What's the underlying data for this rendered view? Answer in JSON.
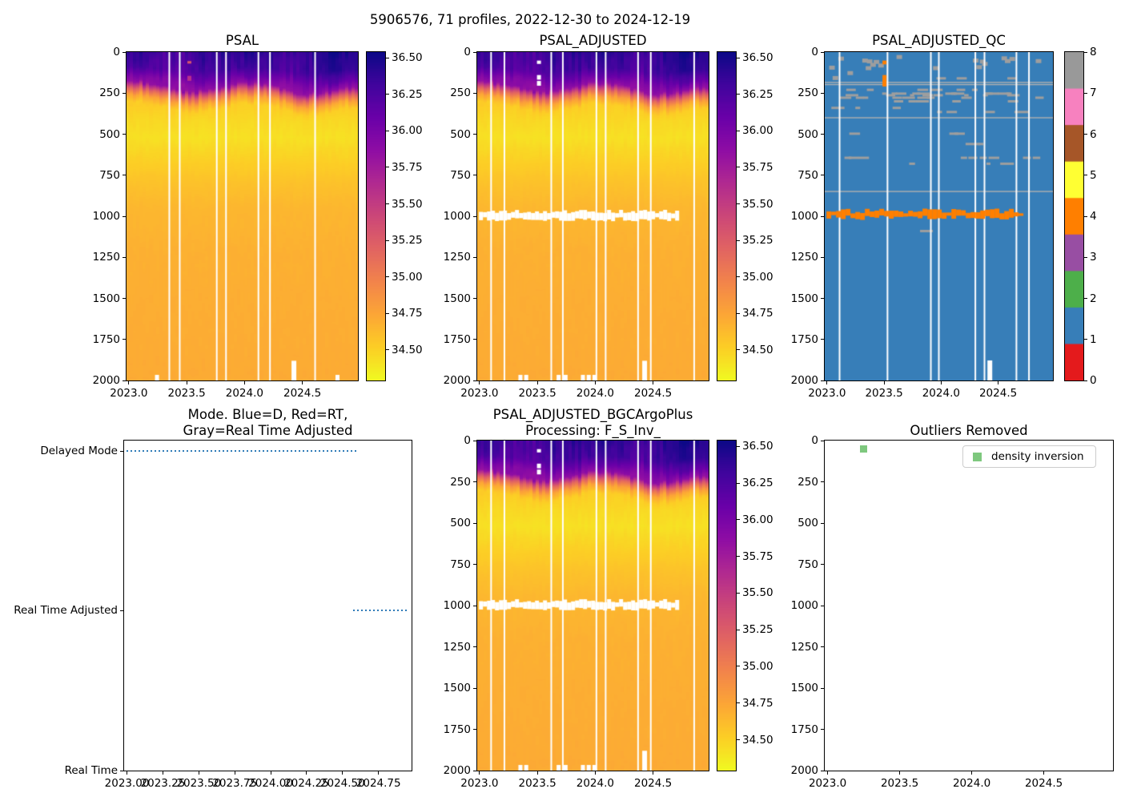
{
  "figure": {
    "title": "5906576, 71 profiles, 2022-12-30 to 2024-12-19"
  },
  "colors": {
    "background": "#ffffff",
    "text": "#000000",
    "mode_dots": "#2e7bb8",
    "outlier_marker": "#7ec87e",
    "legend_border": "#cccccc",
    "qc_gray_line": "#b0b0b0",
    "qc_gray_spot": "#9e9e9e",
    "qc_orange": "#ff7f00",
    "qc_blue": "#377eb8",
    "white": "#ffffff",
    "plasma_stops": [
      "#0d0887",
      "#41049d",
      "#6a00a8",
      "#8f0da4",
      "#b12a90",
      "#cc4778",
      "#e16462",
      "#f2844b",
      "#fca636",
      "#fcce25",
      "#f0f921"
    ],
    "qc_palette": [
      "#e41a1c",
      "#377eb8",
      "#4daf4a",
      "#984ea3",
      "#ff7f00",
      "#ffff33",
      "#a65628",
      "#f781bf",
      "#999999"
    ]
  },
  "chart_data": {
    "type": "heatmap",
    "n_profiles": 71,
    "time_range": [
      2022.995,
      2024.966
    ],
    "axes": {
      "xlim": [
        2022.98,
        2024.98
      ],
      "x_tick_values": [
        2023.0,
        2023.5,
        2024.0,
        2024.5
      ],
      "x_tick_labels": [
        "2023.0",
        "2023.5",
        "2024.0",
        "2024.5"
      ],
      "depth_lim": [
        0,
        2000
      ],
      "depth_tick_values": [
        0,
        250,
        500,
        750,
        1000,
        1250,
        1500,
        1750,
        2000
      ],
      "depth_tick_labels": [
        "0",
        "250",
        "500",
        "750",
        "1000",
        "1250",
        "1500",
        "1750",
        "2000"
      ]
    },
    "salinity_scale": {
      "vmin": 34.29,
      "vmax": 36.54,
      "tick_values": [
        36.5,
        36.25,
        36.0,
        35.75,
        35.5,
        35.25,
        35.0,
        34.75,
        34.5
      ],
      "tick_labels": [
        "36.50",
        "36.25",
        "36.00",
        "35.75",
        "35.50",
        "35.25",
        "35.00",
        "34.75",
        "34.50"
      ]
    },
    "qc_scale": {
      "tick_values": [
        0,
        1,
        2,
        3,
        4,
        5,
        6,
        7,
        8
      ],
      "tick_labels": [
        "0",
        "1",
        "2",
        "3",
        "4",
        "5",
        "6",
        "7",
        "8"
      ]
    },
    "profile_model": {
      "surface_base": 36.38,
      "surface_trend": 0.1,
      "surface_seasonal": 0.14,
      "thermocline_base": 205,
      "thermocline_seasonal": 28,
      "thermocline_trend": 28,
      "pycnocline": [
        [
          0,
          35.85
        ],
        [
          40,
          35.2
        ],
        [
          80,
          34.75
        ],
        [
          125,
          34.52
        ]
      ],
      "deep_points": [
        [
          420,
          34.46
        ],
        [
          520,
          34.42
        ],
        [
          650,
          34.5
        ],
        [
          800,
          34.585
        ],
        [
          950,
          34.645
        ],
        [
          1200,
          34.68
        ],
        [
          1600,
          34.7
        ],
        [
          2000,
          34.715
        ]
      ]
    },
    "panels": [
      {
        "id": "psal",
        "kind": "salinity",
        "title": "PSAL",
        "missing_profiles": [
          2023.35,
          2023.44,
          2023.76,
          2023.84,
          2024.12,
          2024.22,
          2024.61
        ],
        "anomaly_marks": [
          {
            "x": 2023.52,
            "d0": 55,
            "d1": 70,
            "value": 35.3
          },
          {
            "x": 2023.52,
            "d0": 145,
            "d1": 175,
            "value": 35.6
          }
        ],
        "bottom_notch": {
          "x": 2024.42,
          "d0": 1880
        },
        "bottom_dashes": [
          2023.24,
          2024.8
        ]
      },
      {
        "id": "psal_adjusted",
        "kind": "salinity",
        "title": "PSAL_ADJUSTED",
        "missing_profiles": [
          2023.1,
          2023.215,
          2023.62,
          2023.72,
          2024.01,
          2024.09,
          2024.37,
          2024.48,
          2024.855
        ],
        "masked_band": {
          "x0": 2022.995,
          "x1": 2024.72,
          "d0": 972,
          "d1": 1018
        },
        "masked_marks": [
          {
            "x": 2023.51,
            "d0": 52,
            "d1": 72
          },
          {
            "x": 2023.51,
            "d0": 140,
            "d1": 168
          },
          {
            "x": 2023.51,
            "d0": 176,
            "d1": 205
          }
        ],
        "bottom_notch": {
          "x": 2024.42,
          "d0": 1880
        },
        "bottom_dashes": [
          2023.35,
          2023.4,
          2023.68,
          2023.74,
          2023.89,
          2023.94,
          2023.99
        ]
      },
      {
        "id": "psal_adjusted_qc",
        "kind": "qc",
        "title": "PSAL_ADJUSTED_QC",
        "background_flag": 1,
        "missing_profiles": [
          2023.11,
          2023.53,
          2023.91,
          2023.98,
          2024.3,
          2024.38,
          2024.66,
          2024.77
        ],
        "gray_lines": [
          185,
          198,
          400,
          849
        ],
        "gray_dash_rows": [
          {
            "d": 160,
            "n": 3
          },
          {
            "d": 230,
            "n": 6
          },
          {
            "d": 253,
            "n": 12
          },
          {
            "d": 263,
            "n": 8
          },
          {
            "d": 278,
            "n": 9
          },
          {
            "d": 300,
            "n": 5
          },
          {
            "d": 340,
            "n": 3
          },
          {
            "d": 365,
            "n": 4
          },
          {
            "d": 497,
            "n": 3
          },
          {
            "d": 560,
            "n": 2
          },
          {
            "d": 644,
            "n": 9
          },
          {
            "d": 680,
            "n": 3
          },
          {
            "d": 1090,
            "n": 1
          }
        ],
        "gray_spots": [
          {
            "x": 2023.04,
            "d": 95
          },
          {
            "x": 2023.07,
            "d": 158
          },
          {
            "x": 2023.33,
            "d": 52
          },
          {
            "x": 2023.37,
            "d": 57
          },
          {
            "x": 2023.43,
            "d": 60
          },
          {
            "x": 2023.4,
            "d": 78
          },
          {
            "x": 2023.47,
            "d": 82
          },
          {
            "x": 2023.36,
            "d": 98
          },
          {
            "x": 2023.63,
            "d": 30
          },
          {
            "x": 2023.95,
            "d": 98
          },
          {
            "x": 2024.3,
            "d": 52
          },
          {
            "x": 2024.36,
            "d": 58
          },
          {
            "x": 2024.33,
            "d": 92
          },
          {
            "x": 2024.38,
            "d": 72
          },
          {
            "x": 2024.55,
            "d": 38
          },
          {
            "x": 2024.58,
            "d": 55
          },
          {
            "x": 2024.62,
            "d": 42
          },
          {
            "x": 2023.2,
            "d": 128
          },
          {
            "x": 2023.12,
            "d": 40
          },
          {
            "x": 2024.85,
            "d": 55
          }
        ],
        "orange_band": {
          "x0": 2022.995,
          "x1": 2024.72,
          "d0": 968,
          "d1": 1008
        },
        "orange_marks": [
          {
            "x": 2023.5,
            "d0": 52,
            "d1": 75
          },
          {
            "x": 2023.5,
            "d0": 140,
            "d1": 210
          }
        ],
        "bottom_notch": {
          "x": 2024.42,
          "d0": 1878
        }
      },
      {
        "id": "mode",
        "kind": "mode",
        "title_lines": [
          "Mode. Blue=D, Red=RT,",
          "Gray=Real Time Adjusted"
        ],
        "rows": [
          "Delayed Mode",
          "Real Time Adjusted",
          "Real Time"
        ],
        "segments": [
          {
            "row": 0,
            "x0": 2022.995,
            "x1": 2024.61
          },
          {
            "row": 1,
            "x0": 2024.575,
            "x1": 2024.966
          }
        ],
        "x_tick_values": [
          2023.0,
          2023.25,
          2023.5,
          2023.75,
          2024.0,
          2024.25,
          2024.5,
          2024.75
        ],
        "x_tick_labels": [
          "2023.00",
          "2023.25",
          "2023.50",
          "2023.75",
          "2024.00",
          "2024.25",
          "2024.50",
          "2024.75"
        ]
      },
      {
        "id": "psal_adjusted_bgc",
        "kind": "salinity",
        "title_lines": [
          "PSAL_ADJUSTED_BGCArgoPlus",
          "Processing: F_S_Inv_"
        ],
        "missing_profiles": [
          2023.1,
          2023.215,
          2023.62,
          2023.72,
          2024.01,
          2024.09,
          2024.37,
          2024.48,
          2024.855
        ],
        "masked_band": {
          "x0": 2022.995,
          "x1": 2024.72,
          "d0": 972,
          "d1": 1018
        },
        "masked_marks": [
          {
            "x": 2023.51,
            "d0": 52,
            "d1": 72
          },
          {
            "x": 2023.51,
            "d0": 140,
            "d1": 168
          },
          {
            "x": 2023.51,
            "d0": 176,
            "d1": 205
          }
        ],
        "bottom_notch": {
          "x": 2024.42,
          "d0": 1880
        },
        "bottom_dashes": [
          2023.35,
          2023.4,
          2023.68,
          2023.74,
          2023.89,
          2023.94,
          2023.99
        ]
      },
      {
        "id": "outliers",
        "kind": "scatter",
        "title": "Outliers Removed",
        "points": [
          {
            "x": 2023.25,
            "depth": 50,
            "kind": "density inversion"
          }
        ],
        "legend_label": "density inversion"
      }
    ]
  }
}
